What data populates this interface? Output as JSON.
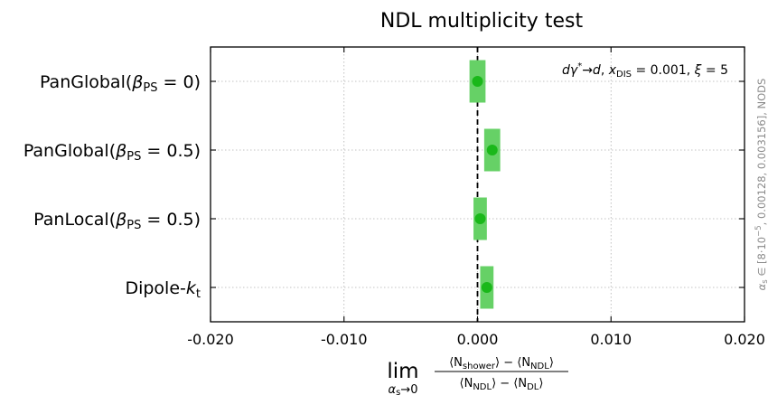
{
  "chart_data": {
    "type": "scatter",
    "title": "NDL multiplicity test",
    "categories": [
      {
        "prefix": "PanGlobal(",
        "sym": "β",
        "sub": "PS",
        "suffix": " = 0)"
      },
      {
        "prefix": "PanGlobal(",
        "sym": "β",
        "sub": "PS",
        "suffix": " = 0.5)"
      },
      {
        "prefix": "PanLocal(",
        "sym": "β",
        "sub": "PS",
        "suffix": " = 0.5)"
      },
      {
        "prefix": "Dipole-",
        "sym": "k",
        "sub": "t",
        "suffix": ""
      }
    ],
    "values": [
      0.0,
      0.0011,
      0.0002,
      0.0007
    ],
    "errors_low": [
      0.0006,
      0.0006,
      0.0005,
      0.0005
    ],
    "errors_high": [
      0.0006,
      0.0006,
      0.0005,
      0.0005
    ],
    "xlim": [
      -0.02,
      0.02
    ],
    "x_ticks": [
      -0.02,
      -0.01,
      0.0,
      0.01,
      0.02
    ],
    "x_tick_labels": [
      "-0.020",
      "-0.010",
      "0.000",
      "0.010",
      "0.020"
    ],
    "reference_line": 0.0,
    "grid": true,
    "xlabel": {
      "lim": "lim",
      "lim_sub": "α",
      "lim_sub_s": "s",
      "lim_sub_tail": "→0",
      "num_a": "⟨N",
      "num_a_sub": "shower",
      "num_b": "⟩ − ⟨N",
      "num_b_sub": "NDL",
      "num_c": "⟩",
      "den_a": "⟨N",
      "den_a_sub": "NDL",
      "den_b": "⟩ − ⟨N",
      "den_b_sub": "DL",
      "den_c": "⟩"
    },
    "annotation": {
      "d1": "d",
      "gamma": "γ",
      "star": "*",
      "arrow": "→",
      "d2": "d",
      "comma": ", ",
      "x": "x",
      "x_sub": "DIS",
      "x_val": " = 0.001, ",
      "xi": "ξ",
      "xi_val": " = 5"
    },
    "side_text": {
      "alpha": "α",
      "alpha_sub": "s",
      "range": " ∈ [8·10",
      "exp": "−5",
      "rest": ", 0.00128, 0.003156], NODS"
    },
    "colors": {
      "marker": "#1ab81a",
      "error_bar": "#66d166",
      "reference": "#000000",
      "grid": "#b0b0b0"
    }
  }
}
